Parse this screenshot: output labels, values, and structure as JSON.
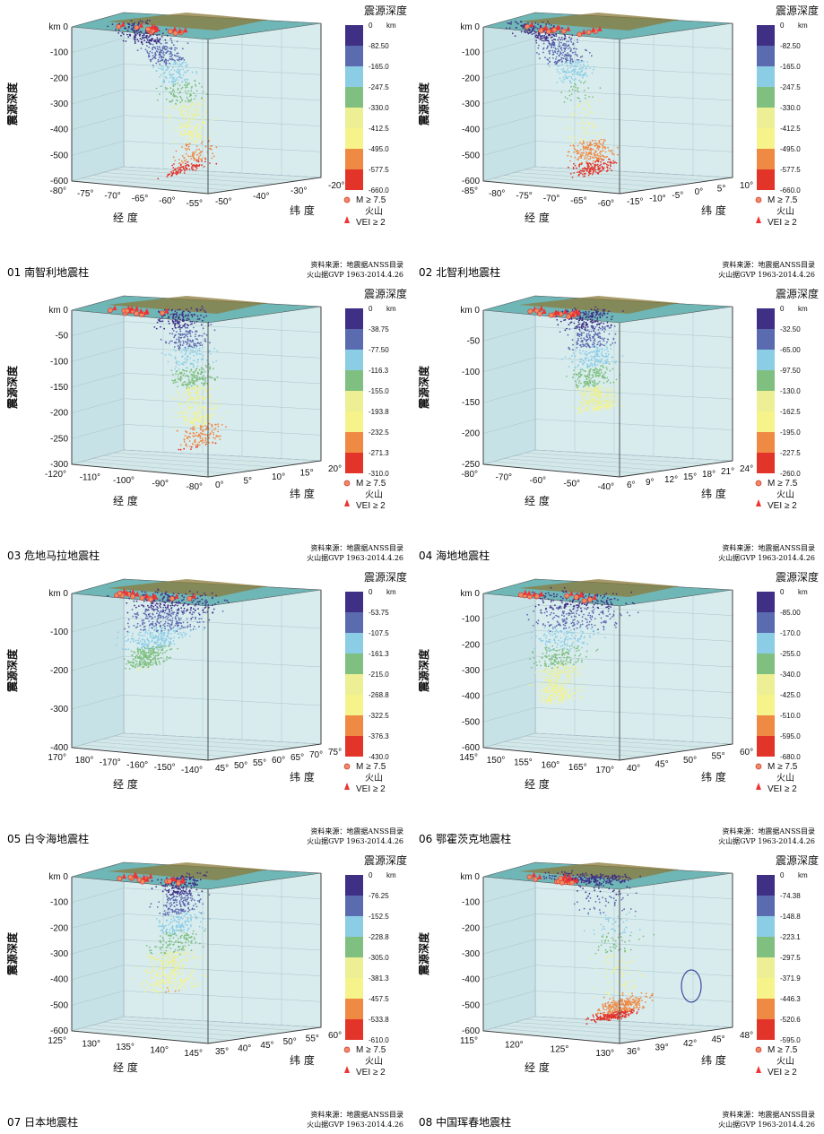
{
  "colors": {
    "depth_scale": [
      "#3f2f85",
      "#5b6bb0",
      "#8ccde6",
      "#7fbf7f",
      "#ecef93",
      "#f6f38a",
      "#ef8a45",
      "#e3342a"
    ],
    "box_fill": "#cfe6ea",
    "top_fill": "#6fb6b6",
    "land": "#8a7a3a"
  },
  "legend": {
    "title": "震源深度",
    "unit": "km",
    "quake_label": "M ≥ 7.5",
    "volcano_title": "火山",
    "volcano_label": "VEI ≥ 2"
  },
  "source": {
    "line1": "资料来源：地震据ANSS目录",
    "line2": "火山据GVP 1963-2014.4.26"
  },
  "axis_labels": {
    "depth": "震源深度",
    "longitude": "经  度",
    "latitude": "纬  度"
  },
  "chart_data": [
    {
      "type": "scatter",
      "title": "01 南智利地震柱",
      "depth_ticks": [
        "km 0",
        "-100",
        "-200",
        "-300",
        "-400",
        "-500",
        "-600"
      ],
      "lon_ticks": [
        "-80°",
        "-75°",
        "-70°",
        "-65°",
        "-60°",
        "-55°"
      ],
      "lat_ticks": [
        "-50°",
        "-40°",
        "-30°",
        "-20°"
      ],
      "depth_max": 660,
      "colorbar": [
        "0",
        "-82.50",
        "-165.0",
        "-247.5",
        "-330.0",
        "-412.5",
        "-495.0",
        "-577.5",
        "-660.0"
      ],
      "profile": [
        [
          0.18,
          0.0,
          0.12
        ],
        [
          0.28,
          0.08,
          0.1
        ],
        [
          0.38,
          0.14,
          0.08
        ],
        [
          0.42,
          0.22,
          0.05
        ],
        [
          0.45,
          0.3,
          0.03
        ],
        [
          0.5,
          0.42,
          0.025
        ],
        [
          0.55,
          0.55,
          0.02
        ],
        [
          0.58,
          0.65,
          0.02
        ],
        [
          0.6,
          0.8,
          0.03
        ],
        [
          0.55,
          0.9,
          0.04
        ],
        [
          0.48,
          0.96,
          0.04
        ]
      ],
      "note": ""
    },
    {
      "type": "scatter",
      "title": "02 北智利地震柱",
      "depth_ticks": [
        "km 0",
        "-100",
        "-200",
        "-300",
        "-400",
        "-500",
        "-600"
      ],
      "lon_ticks": [
        "-85°",
        "-80°",
        "-75°",
        "-70°",
        "-65°",
        "-60°"
      ],
      "lat_ticks": [
        "-15°",
        "-10°",
        "-5°",
        "0°",
        "5°",
        "10°"
      ],
      "depth_max": 660,
      "colorbar": [
        "0",
        "-82.50",
        "-165.0",
        "-247.5",
        "-330.0",
        "-412.5",
        "-495.0",
        "-577.5",
        "-660.0"
      ],
      "profile": [
        [
          0.12,
          0.0,
          0.16
        ],
        [
          0.22,
          0.08,
          0.14
        ],
        [
          0.3,
          0.16,
          0.1
        ],
        [
          0.35,
          0.24,
          0.07
        ],
        [
          0.4,
          0.34,
          0.05
        ],
        [
          0.47,
          0.75,
          0.03
        ],
        [
          0.5,
          0.82,
          0.04
        ],
        [
          0.52,
          0.9,
          0.04
        ],
        [
          0.5,
          0.96,
          0.03
        ]
      ],
      "note": ""
    },
    {
      "type": "scatter",
      "title": "03 危地马拉地震柱",
      "depth_ticks": [
        "km 0",
        "-50",
        "-100",
        "-150",
        "-200",
        "-250",
        "-300"
      ],
      "lon_ticks": [
        "-120°",
        "-110°",
        "-100°",
        "-90°",
        "-80°"
      ],
      "lat_ticks": [
        "0°",
        "5°",
        "10°",
        "15°",
        "20°"
      ],
      "depth_max": 310,
      "colorbar": [
        "0",
        "-38.75",
        "-77.50",
        "-116.3",
        "-155.0",
        "-193.8",
        "-232.5",
        "-271.3",
        "-310.0"
      ],
      "profile": [
        [
          0.5,
          0.0,
          0.16
        ],
        [
          0.52,
          0.1,
          0.12
        ],
        [
          0.54,
          0.25,
          0.08
        ],
        [
          0.56,
          0.4,
          0.05
        ],
        [
          0.58,
          0.5,
          0.04
        ],
        [
          0.6,
          0.62,
          0.03
        ],
        [
          0.61,
          0.75,
          0.025
        ],
        [
          0.62,
          0.88,
          0.02
        ]
      ],
      "note": ""
    },
    {
      "type": "scatter",
      "title": "04 海地地震柱",
      "depth_ticks": [
        "km 0",
        "-50",
        "-100",
        "-150",
        "-200",
        "-250"
      ],
      "lon_ticks": [
        "-80°",
        "-70°",
        "-60°",
        "-50°",
        "-40°"
      ],
      "lat_ticks": [
        "6°",
        "9°",
        "12°",
        "15°",
        "18°",
        "21°",
        "24°"
      ],
      "depth_max": 260,
      "colorbar": [
        "0",
        "-32.50",
        "-65.00",
        "-97.50",
        "-130.0",
        "-162.5",
        "-195.0",
        "-227.5",
        "-260.0"
      ],
      "profile": [
        [
          0.45,
          0.0,
          0.2
        ],
        [
          0.48,
          0.12,
          0.14
        ],
        [
          0.5,
          0.28,
          0.1
        ],
        [
          0.5,
          0.42,
          0.07
        ],
        [
          0.52,
          0.55,
          0.05
        ],
        [
          0.54,
          0.65,
          0.04
        ]
      ],
      "note": ""
    },
    {
      "type": "scatter",
      "title": "05 白令海地震柱",
      "depth_ticks": [
        "km 0",
        "-100",
        "-200",
        "-300",
        "-400"
      ],
      "lon_ticks": [
        "170°",
        "180°",
        "-170°",
        "-160°",
        "-150°",
        "-140°"
      ],
      "lat_ticks": [
        "45°",
        "50°",
        "55°",
        "60°",
        "65°",
        "70°",
        "75°"
      ],
      "depth_max": 430,
      "colorbar": [
        "0",
        "-53.75",
        "-107.5",
        "-161.3",
        "-215.0",
        "-268.8",
        "-322.5",
        "-376.3",
        "-430.0"
      ],
      "profile": [
        [
          0.45,
          0.0,
          0.38
        ],
        [
          0.45,
          0.1,
          0.36
        ],
        [
          0.42,
          0.2,
          0.3
        ],
        [
          0.35,
          0.3,
          0.22
        ],
        [
          0.3,
          0.4,
          0.12
        ],
        [
          0.28,
          0.5,
          0.08
        ]
      ],
      "note": ""
    },
    {
      "type": "scatter",
      "title": "06 鄂霍茨克地震柱",
      "depth_ticks": [
        "km 0",
        "-100",
        "-200",
        "-300",
        "-400",
        "-500",
        "-600"
      ],
      "lon_ticks": [
        "145°",
        "150°",
        "155°",
        "160°",
        "165°",
        "170°"
      ],
      "lat_ticks": [
        "40°",
        "45°",
        "50°",
        "55°",
        "60°"
      ],
      "depth_max": 680,
      "colorbar": [
        "0",
        "-85.00",
        "-170.0",
        "-255.0",
        "-340.0",
        "-425.0",
        "-510.0",
        "-595.0",
        "-680.0"
      ],
      "profile": [
        [
          0.42,
          0.0,
          0.4
        ],
        [
          0.42,
          0.1,
          0.38
        ],
        [
          0.38,
          0.22,
          0.3
        ],
        [
          0.32,
          0.35,
          0.2
        ],
        [
          0.3,
          0.5,
          0.14
        ],
        [
          0.28,
          0.62,
          0.12
        ],
        [
          0.3,
          0.72,
          0.1
        ]
      ],
      "note": ""
    },
    {
      "type": "scatter",
      "title": "07 日本地震柱",
      "depth_ticks": [
        "km 0",
        "-100",
        "-200",
        "-300",
        "-400",
        "-500",
        "-600"
      ],
      "lon_ticks": [
        "125°",
        "130°",
        "135°",
        "140°",
        "145°"
      ],
      "lat_ticks": [
        "35°",
        "40°",
        "45°",
        "50°",
        "55°",
        "60°"
      ],
      "depth_max": 610,
      "colorbar": [
        "0",
        "-76.25",
        "-152.5",
        "-228.8",
        "-305.0",
        "-381.3",
        "-457.5",
        "-533.8",
        "-610.0"
      ],
      "profile": [
        [
          0.5,
          0.0,
          0.1
        ],
        [
          0.5,
          0.1,
          0.1
        ],
        [
          0.5,
          0.22,
          0.1
        ],
        [
          0.48,
          0.35,
          0.12
        ],
        [
          0.45,
          0.5,
          0.14
        ],
        [
          0.42,
          0.62,
          0.18
        ],
        [
          0.44,
          0.75,
          0.2
        ]
      ],
      "note": ""
    },
    {
      "type": "scatter",
      "title": "08 中国珲春地震柱",
      "depth_ticks": [
        "km 0",
        "-100",
        "-200",
        "-300",
        "-400",
        "-500",
        "-600"
      ],
      "lon_ticks": [
        "115°",
        "120°",
        "125°",
        "130°"
      ],
      "lat_ticks": [
        "36°",
        "39°",
        "42°",
        "45°",
        "48°"
      ],
      "depth_max": 595,
      "colorbar": [
        "0",
        "-74.38",
        "-148.8",
        "-223.1",
        "-297.5",
        "-371.9",
        "-446.3",
        "-520.6",
        "-595.0"
      ],
      "profile": [
        [
          0.45,
          0.0,
          0.4
        ],
        [
          0.55,
          0.03,
          0.2
        ],
        [
          0.7,
          0.78,
          0.06
        ],
        [
          0.66,
          0.86,
          0.06
        ],
        [
          0.6,
          0.92,
          0.05
        ]
      ],
      "note": "circle"
    }
  ]
}
